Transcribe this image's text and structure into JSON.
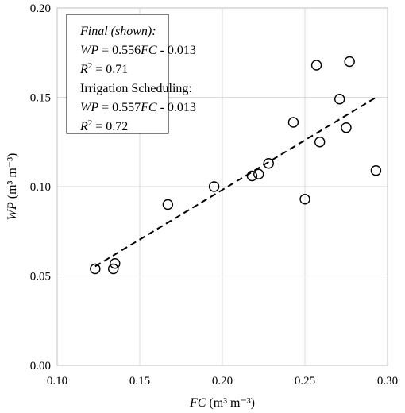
{
  "chart_data": {
    "type": "scatter",
    "xlabel_italic": "FC",
    "xlabel_unit": "(m³ m⁻³)",
    "ylabel_italic": "WP",
    "ylabel_unit": "(m³ m⁻³)",
    "xlim": [
      0.1,
      0.3
    ],
    "ylim": [
      0.0,
      0.2
    ],
    "xticks": [
      "0.10",
      "0.15",
      "0.20",
      "0.25",
      "0.30"
    ],
    "yticks": [
      "0.00",
      "0.05",
      "0.10",
      "0.15",
      "0.20"
    ],
    "grid": true,
    "points": [
      {
        "x": 0.123,
        "y": 0.054
      },
      {
        "x": 0.134,
        "y": 0.054
      },
      {
        "x": 0.135,
        "y": 0.057
      },
      {
        "x": 0.167,
        "y": 0.09
      },
      {
        "x": 0.195,
        "y": 0.1
      },
      {
        "x": 0.218,
        "y": 0.106
      },
      {
        "x": 0.222,
        "y": 0.107
      },
      {
        "x": 0.228,
        "y": 0.113
      },
      {
        "x": 0.243,
        "y": 0.136
      },
      {
        "x": 0.25,
        "y": 0.093
      },
      {
        "x": 0.257,
        "y": 0.168
      },
      {
        "x": 0.259,
        "y": 0.125
      },
      {
        "x": 0.271,
        "y": 0.149
      },
      {
        "x": 0.275,
        "y": 0.133
      },
      {
        "x": 0.277,
        "y": 0.17
      },
      {
        "x": 0.293,
        "y": 0.109
      }
    ],
    "trendline": {
      "slope": 0.556,
      "intercept": -0.013,
      "x_start": 0.123,
      "x_end": 0.293
    },
    "annotation": {
      "placement": "top-left",
      "line1": "Final (shown):",
      "line2_var1": "WP",
      "line2_mid": " = 0.556",
      "line2_var2": "FC",
      "line2_end": " - 0.013",
      "line3_var": "R",
      "line3_sup": "2",
      "line3_val": " = 0.71",
      "line4": "Irrigation Scheduling:",
      "line5_var1": "WP",
      "line5_mid": " = 0.557",
      "line5_var2": "FC",
      "line5_end": " - 0.013",
      "line6_var": "R",
      "line6_sup": "2",
      "line6_val": " = 0.72"
    }
  }
}
